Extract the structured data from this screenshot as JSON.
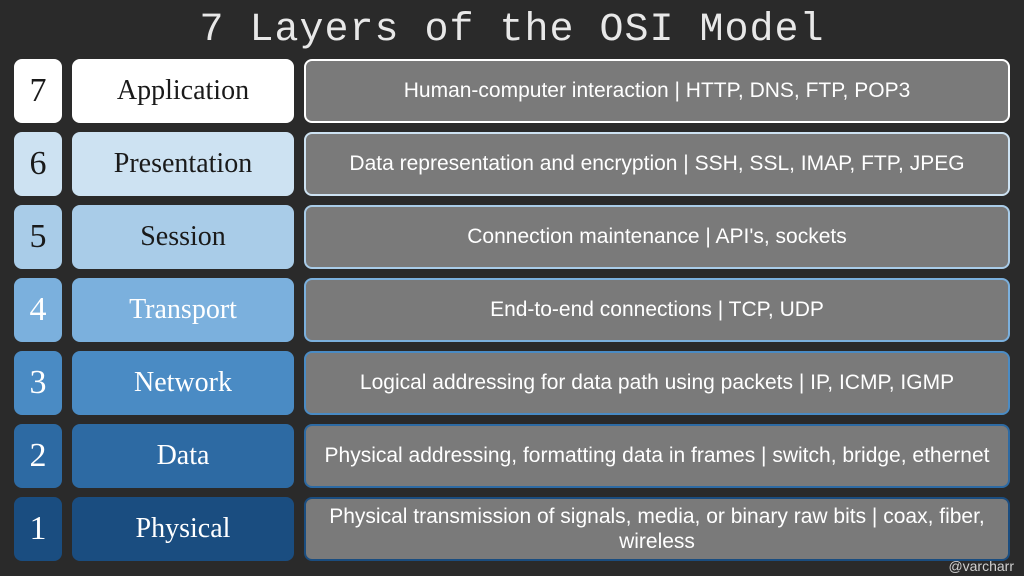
{
  "title": "7 Layers of the OSI Model",
  "credit": "@varcharr",
  "background_color": "#2a2a2a",
  "desc_bg": "#7a7a7a",
  "desc_text_color": "#ffffff",
  "layers": [
    {
      "num": "7",
      "name": "Application",
      "desc": "Human-computer interaction | HTTP, DNS, FTP, POP3",
      "fill": "#ffffff",
      "text": "#1a1a1a",
      "border": "#ffffff"
    },
    {
      "num": "6",
      "name": "Presentation",
      "desc": "Data representation and encryption | SSH, SSL, IMAP, FTP, JPEG",
      "fill": "#cde2f2",
      "text": "#1a1a1a",
      "border": "#cde2f2"
    },
    {
      "num": "5",
      "name": "Session",
      "desc": "Connection maintenance | API's, sockets",
      "fill": "#a9cce8",
      "text": "#1a1a1a",
      "border": "#a9cce8"
    },
    {
      "num": "4",
      "name": "Transport",
      "desc": "End-to-end connections | TCP, UDP",
      "fill": "#7bb0dd",
      "text": "#ffffff",
      "border": "#7bb0dd"
    },
    {
      "num": "3",
      "name": "Network",
      "desc": "Logical addressing for data path using packets | IP, ICMP, IGMP",
      "fill": "#4a8bc4",
      "text": "#ffffff",
      "border": "#4a8bc4"
    },
    {
      "num": "2",
      "name": "Data",
      "desc": "Physical addressing, formatting data in frames | switch, bridge, ethernet",
      "fill": "#2d6aa3",
      "text": "#ffffff",
      "border": "#2d6aa3"
    },
    {
      "num": "1",
      "name": "Physical",
      "desc": "Physical transmission of signals, media, or binary raw bits | coax, fiber, wireless",
      "fill": "#1a4d80",
      "text": "#ffffff",
      "border": "#1a4d80"
    }
  ]
}
